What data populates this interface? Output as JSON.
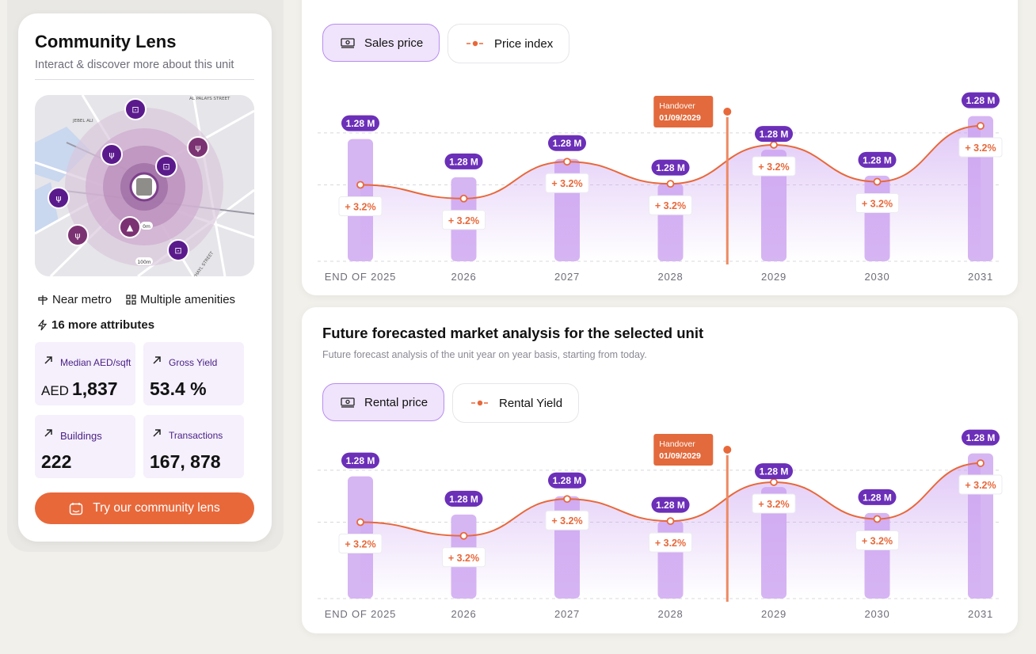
{
  "community_lens": {
    "title": "Community Lens",
    "subtitle": "Interact & discover more about this unit",
    "map_labels": [
      "JEBEL ALI",
      "AL PALAYS STREET",
      "AL KHAYL STREET",
      "0m",
      "100m"
    ],
    "features": {
      "near_metro": "Near metro",
      "amenities": "Multiple amenities",
      "more_attributes": "16 more attributes"
    },
    "stats": [
      {
        "label": "Median AED/sqft",
        "prefix": "AED",
        "value": "1,837"
      },
      {
        "label": "Gross Yield",
        "prefix": "",
        "value": "53.4 %"
      },
      {
        "label": "Buildings",
        "prefix": "",
        "value": "222"
      },
      {
        "label": "Transactions",
        "prefix": "",
        "value": "167, 878"
      }
    ],
    "cta_label": "Try our community lens",
    "colors": {
      "accent": "#e8683a",
      "purple": "#6b2fb8"
    }
  },
  "sales_panel": {
    "toggles": {
      "bar": "Sales price",
      "line": "Price index"
    },
    "handover": {
      "label": "Handover",
      "date": "01/09/2029"
    }
  },
  "rental_panel": {
    "title": "Future forecasted market analysis for the selected unit",
    "subtitle": "Future forecast analysis of the unit year on year basis, starting from today.",
    "toggles": {
      "bar": "Rental price",
      "line": "Rental Yield"
    },
    "handover": {
      "label": "Handover",
      "date": "01/09/2029"
    }
  },
  "chart_data": [
    {
      "type": "bar",
      "categories": [
        "END OF 2025",
        "2026",
        "2027",
        "2028",
        "2029",
        "2030",
        "2031"
      ],
      "series": [
        {
          "name": "Sales price",
          "values": [
            1.28,
            1.28,
            1.28,
            1.28,
            1.28,
            1.28,
            1.28
          ],
          "labels": [
            "1.28 M",
            "1.28 M",
            "1.28 M",
            "1.28 M",
            "1.28 M",
            "1.28 M",
            "1.28 M"
          ],
          "relative_heights": [
            0.8,
            0.55,
            0.67,
            0.51,
            0.73,
            0.56,
            0.95
          ]
        },
        {
          "name": "Price index",
          "type": "line",
          "relative_levels": [
            0.44,
            0.31,
            0.66,
            0.45,
            0.82,
            0.47,
            1.0
          ],
          "labels": [
            "+ 3.2%",
            "+ 3.2%",
            "+ 3.2%",
            "+ 3.2%",
            "+ 3.2%",
            "+ 3.2%",
            "+ 3.2%"
          ]
        }
      ],
      "grid": true,
      "handover_position": 3.55
    },
    {
      "type": "bar",
      "categories": [
        "END OF 2025",
        "2026",
        "2027",
        "2028",
        "2029",
        "2030",
        "2031"
      ],
      "series": [
        {
          "name": "Rental price",
          "values": [
            1.28,
            1.28,
            1.28,
            1.28,
            1.28,
            1.28,
            1.28
          ],
          "labels": [
            "1.28 M",
            "1.28 M",
            "1.28 M",
            "1.28 M",
            "1.28 M",
            "1.28 M",
            "1.28 M"
          ],
          "relative_heights": [
            0.8,
            0.55,
            0.67,
            0.51,
            0.73,
            0.56,
            0.95
          ]
        },
        {
          "name": "Rental Yield",
          "type": "line",
          "relative_levels": [
            0.44,
            0.31,
            0.66,
            0.45,
            0.82,
            0.47,
            1.0
          ],
          "labels": [
            "+ 3.2%",
            "+ 3.2%",
            "+ 3.2%",
            "+ 3.2%",
            "+ 3.2%",
            "+ 3.2%",
            "+ 3.2%"
          ]
        }
      ],
      "grid": true,
      "handover_position": 3.55
    }
  ]
}
